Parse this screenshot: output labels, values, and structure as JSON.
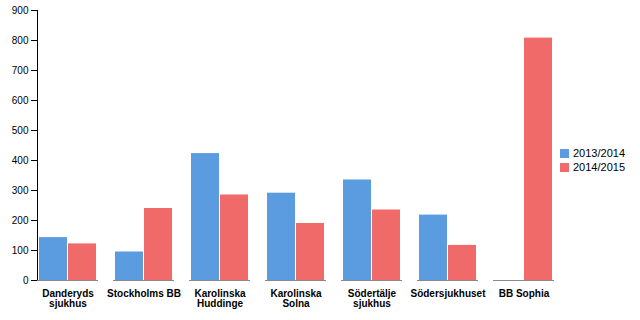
{
  "chart_data": {
    "type": "bar",
    "categories": [
      "Danderyds sjukhus",
      "Stockholms BB",
      "Karolinska Huddinge",
      "Karolinska Solna",
      "Södertälje sjukhus",
      "Södersjukhuset",
      "BB Sophia"
    ],
    "series": [
      {
        "name": "2013/2014",
        "color": "#5b9be0",
        "values": [
          143,
          95,
          423,
          291,
          335,
          218,
          null
        ]
      },
      {
        "name": "2014/2015",
        "color": "#f06a6a",
        "values": [
          122,
          240,
          285,
          190,
          235,
          117,
          808
        ]
      }
    ],
    "ylim": [
      0,
      900
    ],
    "yticks": [
      0,
      100,
      200,
      300,
      400,
      500,
      600,
      700,
      800,
      900
    ],
    "grid": false,
    "legend": "right"
  }
}
